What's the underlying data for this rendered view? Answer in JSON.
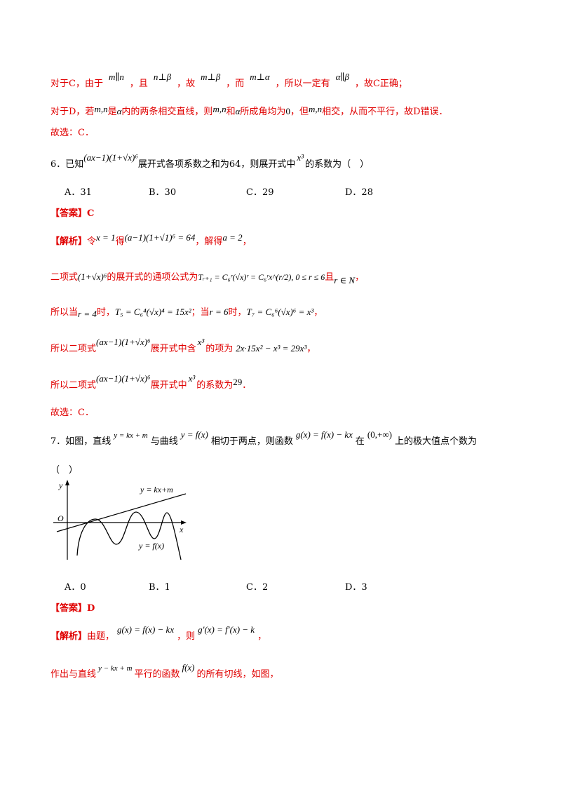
{
  "lines": {
    "l1": {
      "t1": "对于C，由于",
      "m1": "m∥n",
      "m2": "n⊥β",
      "t2": "，且",
      "t3": "，故",
      "m3": "m⊥β",
      "t4": "，而",
      "m4": "m⊥α",
      "t5": "，所以一定有",
      "m5": "α∥β",
      "t6": "，故C正确；"
    },
    "l2": {
      "t1": "对于D，若",
      "m1": "m,n",
      "t2": "是",
      "m2": "α",
      "t3": "内的两条相交直线，则",
      "m3": "m,n",
      "t4": "和",
      "m4": "α",
      "t5": "所成角均为",
      "m5": "0",
      "t6": "，但",
      "m6": "m,n",
      "t7": "相交，从而不平行，故D错误．"
    },
    "l3": "故选：C．",
    "q6": {
      "t1": "6．已知",
      "m1": "(ax−1)(1+√x)⁶",
      "t2": "展开式各项系数之和为64，则展开式中",
      "m2": "x³",
      "t3": "的系数为（　）"
    },
    "q6_options": [
      "A．31",
      "B．30",
      "C．29",
      "D．28"
    ],
    "ans6": {
      "tag": "【答案】C"
    },
    "sol6_l1": {
      "tag": "【解析】",
      "t1": "令",
      "m1": "x = 1",
      "t2": "得",
      "m2": "(a−1)(1+√1)⁶ = 64",
      "t3": "，解得",
      "m3": "a = 2",
      "t4": "，"
    },
    "sol6_l2": {
      "t1": "二项式",
      "m1": "(1+√x)⁶",
      "t2": "的展开式的通项公式为",
      "m2": "Tᵣ₊₁ = C₆ʳ(√x)ʳ = C₆ʳx^(r/2), 0 ≤ r ≤ 6",
      "t3": "且",
      "m3": "r ∈ N",
      "t4": "，"
    },
    "sol6_l3": {
      "t1": "所以当",
      "m1": "r = 4",
      "t2": "时，",
      "m2": "T₅ = C₆⁴(√x)⁴ = 15x²",
      "t3": "；当",
      "m3": "r = 6",
      "t4": "时，",
      "m4": "T₇ = C₆⁶(√x)⁶ = x³",
      "t5": "，"
    },
    "sol6_l4": {
      "t1": "所以二项式",
      "m1": "(ax−1)(1+√x)⁶",
      "t2": "展开式中含",
      "m2": "x³",
      "t3": "的项为",
      "m3": "2x·15x² − x³ = 29x³",
      "t4": "，"
    },
    "sol6_l5": {
      "t1": "所以二项式",
      "m1": "(ax−1)(1+√x)⁶",
      "t2": "展开式中",
      "m2": "x³",
      "t3": "的系数为",
      "m3": "29",
      "t4": "．"
    },
    "sol6_l6": "故选：C．",
    "q7": {
      "t1": "7．如图，直线",
      "m1": "y = kx + m",
      "t2": "与曲线",
      "m2": "y = f(x)",
      "t3": "相切于两点，则函数",
      "m3": "g(x) = f(x) − kx",
      "t4": "在",
      "m4": "(0,+∞)",
      "t5": "上的极大值点个数为"
    },
    "q7_paren": "（　）",
    "figure": {
      "label_line": "y = kx+m",
      "label_curve": "y = f(x)",
      "axis_y": "y",
      "axis_x": "x",
      "origin": "O"
    },
    "q7_options": [
      "A．0",
      "B．1",
      "C．2",
      "D．3"
    ],
    "ans7": {
      "tag": "【答案】D"
    },
    "sol7_l1": {
      "tag": "【解析】",
      "t1": "由题，",
      "m1": "g(x) = f(x) − kx",
      "t2": "，则",
      "m2": "g′(x) = f′(x) − k",
      "t3": "，"
    },
    "sol7_l2": {
      "t1": "作出与直线",
      "m1": "y − kx + m",
      "t2": "平行的函数",
      "m2": "f(x)",
      "t3": "的所有切线，如图，"
    }
  }
}
